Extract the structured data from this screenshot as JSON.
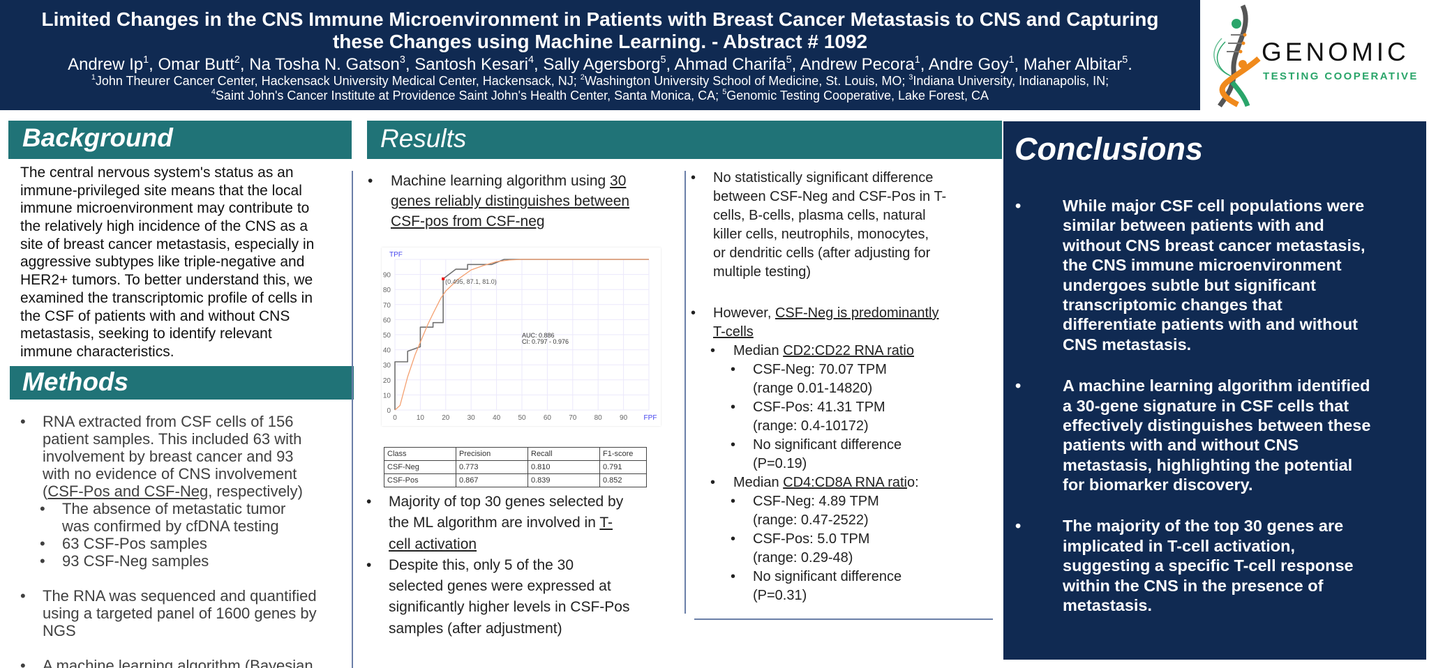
{
  "header": {
    "title_line1": "Limited Changes in the CNS Immune Microenvironment in Patients with Breast Cancer Metastasis to CNS and Capturing",
    "title_line2": "these Changes using Machine Learning. - Abstract # 1092",
    "authors": [
      {
        "name": "Andrew Ip",
        "aff": "1"
      },
      {
        "name": "Omar Butt",
        "aff": "2"
      },
      {
        "name": "Na Tosha N. Gatson",
        "aff": "3"
      },
      {
        "name": "Santosh Kesari",
        "aff": "4"
      },
      {
        "name": "Sally Agersborg",
        "aff": "5"
      },
      {
        "name": "Ahmad Charifa",
        "aff": "5"
      },
      {
        "name": "Andrew Pecora",
        "aff": "1"
      },
      {
        "name": "Andre Goy",
        "aff": "1"
      },
      {
        "name": "Maher Albitar",
        "aff": "5"
      }
    ],
    "affiliations_line1": [
      {
        "n": "1",
        "t": "John Theurer Cancer Center, Hackensack University Medical Center, Hackensack, NJ; "
      },
      {
        "n": "2",
        "t": "Washington University School of Medicine, St. Louis, MO; "
      },
      {
        "n": "3",
        "t": "Indiana University, Indianapolis, IN;"
      }
    ],
    "affiliations_line2": [
      {
        "n": "4",
        "t": "Saint John's Cancer Institute at Providence Saint John's Health Center, Santa Monica, CA; "
      },
      {
        "n": "5",
        "t": "Genomic Testing Cooperative, Lake Forest, CA"
      }
    ]
  },
  "logo": {
    "word": "GENOMIC",
    "sub": "TESTING COOPERATIVE",
    "colors": {
      "green": "#2aa56a",
      "orange": "#f08a1c",
      "gray": "#555555"
    }
  },
  "colors": {
    "navy": "#102a52",
    "teal": "#207377"
  },
  "background": {
    "heading": "Background",
    "lines": [
      {
        "segs": [
          "The central nervous system's status as an"
        ]
      },
      {
        "segs": [
          "immune-privileged site means that the local"
        ]
      },
      {
        "segs": [
          "immune microenvironment may contribute to"
        ]
      },
      {
        "segs": [
          "the relatively high incidence of the CNS as a"
        ]
      },
      {
        "segs": [
          "site of breast cancer metastasis, especially in"
        ]
      },
      {
        "segs": [
          "aggressive subtypes like triple-negative and"
        ]
      },
      {
        "segs": [
          "HER2+ tumors. To better understand this, we"
        ]
      },
      {
        "segs": [
          "examined the transcriptomic profile of cells in"
        ]
      },
      {
        "segs": [
          "the CSF of patients with and without CNS"
        ]
      },
      {
        "segs": [
          "metastasis, seeking to identify relevant"
        ]
      },
      {
        "segs": [
          "immune characteristics."
        ]
      }
    ]
  },
  "methods": {
    "heading": "Methods",
    "lines": [
      {
        "lvl": 0,
        "bullet": true,
        "segs": [
          "RNA extracted from CSF cells of 156"
        ]
      },
      {
        "lvl": 0,
        "segs": [
          "patient samples.  This included 63 with"
        ]
      },
      {
        "lvl": 0,
        "segs": [
          "involvement by breast cancer and 93"
        ]
      },
      {
        "lvl": 0,
        "segs": [
          "with no evidence of  CNS involvement"
        ]
      },
      {
        "lvl": 0,
        "segs": [
          "(",
          {
            "u": "CSF-Pos and CSF-Neg"
          },
          ", respectively)"
        ]
      },
      {
        "lvl": 1,
        "bullet": true,
        "segs": [
          "The absence of metastatic tumor"
        ]
      },
      {
        "lvl": 1,
        "segs": [
          "was confirmed by cfDNA testing"
        ]
      },
      {
        "lvl": 1,
        "bullet": true,
        "segs": [
          "63 CSF-Pos samples"
        ]
      },
      {
        "lvl": 1,
        "bullet": true,
        "segs": [
          "93 CSF-Neg samples"
        ]
      },
      {
        "gap": true
      },
      {
        "lvl": 0,
        "bullet": true,
        "segs": [
          "The RNA was sequenced and quantified"
        ]
      },
      {
        "lvl": 0,
        "segs": [
          "using a targeted panel of 1600 genes by"
        ]
      },
      {
        "lvl": 0,
        "segs": [
          "NGS"
        ]
      },
      {
        "gap": true
      },
      {
        "lvl": 0,
        "bullet": true,
        "segs": [
          "A machine learning algorithm (Bayesian"
        ]
      }
    ]
  },
  "results": {
    "heading": "Results",
    "col1_top": [
      {
        "lvl": 0,
        "bullet": true,
        "segs": [
          "Machine learning algorithm using ",
          {
            "u": "30"
          }
        ]
      },
      {
        "lvl": 0,
        "segs": [
          {
            "u": "genes reliably distinguishes between"
          }
        ]
      },
      {
        "lvl": 0,
        "segs": [
          {
            "u": "CSF-pos from CSF-neg"
          }
        ]
      }
    ],
    "col1_bottom": [
      {
        "lvl": 0,
        "bullet": true,
        "segs": [
          "Majority of top 30 genes selected by"
        ]
      },
      {
        "lvl": 0,
        "segs": [
          "the ML algorithm are involved in ",
          {
            "u": "T-"
          }
        ]
      },
      {
        "lvl": 0,
        "segs": [
          {
            "u": "cell activation"
          }
        ]
      },
      {
        "lvl": 0,
        "bullet": true,
        "segs": [
          "Despite this, only 5 of the 30"
        ]
      },
      {
        "lvl": 0,
        "segs": [
          "selected genes were expressed at"
        ]
      },
      {
        "lvl": 0,
        "segs": [
          "significantly higher levels in CSF-Pos"
        ]
      },
      {
        "lvl": 0,
        "segs": [
          "samples (after adjustment)"
        ]
      }
    ],
    "col2": [
      {
        "lvl": 0,
        "bullet": true,
        "segs": [
          "No statistically significant difference"
        ]
      },
      {
        "lvl": 0,
        "segs": [
          "between CSF-Neg and CSF-Pos in T-"
        ]
      },
      {
        "lvl": 0,
        "segs": [
          "cells, B-cells, plasma cells, natural"
        ]
      },
      {
        "lvl": 0,
        "segs": [
          "killer cells, neutrophils, monocytes,"
        ]
      },
      {
        "lvl": 0,
        "segs": [
          "or dendritic cells (after adjusting for"
        ]
      },
      {
        "lvl": 0,
        "segs": [
          "multiple testing)"
        ]
      },
      {
        "gap": true
      },
      {
        "lvl": 0,
        "bullet": true,
        "segs": [
          "However, ",
          {
            "u": "CSF-Neg is predominantly"
          }
        ]
      },
      {
        "lvl": 0,
        "segs": [
          {
            "u": "T-cells"
          }
        ]
      },
      {
        "lvl": 1,
        "bullet": true,
        "segs": [
          "Median ",
          {
            "u": "CD2:CD22 RNA ratio"
          }
        ]
      },
      {
        "lvl": 2,
        "bullet": true,
        "segs": [
          "CSF-Neg: 70.07 TPM"
        ]
      },
      {
        "lvl": 2,
        "segs": [
          "(range 0.01-14820)"
        ]
      },
      {
        "lvl": 2,
        "bullet": true,
        "segs": [
          "CSF-Pos: 41.31 TPM"
        ]
      },
      {
        "lvl": 2,
        "segs": [
          "(range: 0.4-10172)"
        ]
      },
      {
        "lvl": 2,
        "bullet": true,
        "segs": [
          "No significant difference"
        ]
      },
      {
        "lvl": 2,
        "segs": [
          "(P=0.19)"
        ]
      },
      {
        "lvl": 1,
        "bullet": true,
        "segs": [
          "Median ",
          {
            "u": "CD4:CD8A RNA rati"
          },
          "o:"
        ]
      },
      {
        "lvl": 2,
        "bullet": true,
        "segs": [
          "CSF-Neg: 4.89 TPM"
        ]
      },
      {
        "lvl": 2,
        "segs": [
          "(range: 0.47-2522)"
        ]
      },
      {
        "lvl": 2,
        "bullet": true,
        "segs": [
          "CSF-Pos: 5.0 TPM"
        ]
      },
      {
        "lvl": 2,
        "segs": [
          "(range: 0.29-48)"
        ]
      },
      {
        "lvl": 2,
        "bullet": true,
        "segs": [
          "No significant difference"
        ]
      },
      {
        "lvl": 2,
        "segs": [
          "(P=0.31)"
        ]
      }
    ],
    "metrics_table": {
      "headers": [
        "Class",
        "Precision",
        "Recall",
        "F1-score"
      ],
      "rows": [
        [
          "CSF-Neg",
          "0.773",
          "0.810",
          "0.791"
        ],
        [
          "CSF-Pos",
          "0.867",
          "0.839",
          "0.852"
        ]
      ]
    }
  },
  "chart_data": {
    "type": "line",
    "xlabel": "FPF",
    "ylabel": "TPF",
    "xlim": [
      0,
      100
    ],
    "ylim": [
      0,
      100
    ],
    "x_ticks": [
      0,
      10,
      20,
      30,
      40,
      50,
      60,
      70,
      80,
      90
    ],
    "y_ticks": [
      0,
      10,
      20,
      30,
      40,
      50,
      60,
      70,
      80,
      90
    ],
    "grid": true,
    "series": [
      {
        "style": "step",
        "color": "#707070",
        "points": [
          [
            0,
            0
          ],
          [
            0,
            32
          ],
          [
            5,
            32
          ],
          [
            5,
            39
          ],
          [
            10,
            42
          ],
          [
            10,
            55
          ],
          [
            15,
            55
          ],
          [
            15,
            58
          ],
          [
            19,
            58
          ],
          [
            19,
            87.1
          ],
          [
            24,
            93.5
          ],
          [
            28.6,
            93.5
          ],
          [
            28.6,
            96.6
          ],
          [
            38,
            96.6
          ],
          [
            43,
            100
          ],
          [
            100,
            100
          ]
        ]
      },
      {
        "style": "smooth",
        "color": "#f4a070",
        "points": [
          [
            0,
            0
          ],
          [
            2,
            3
          ],
          [
            5,
            22
          ],
          [
            8,
            37
          ],
          [
            10,
            45
          ],
          [
            13,
            57
          ],
          [
            15,
            64
          ],
          [
            18,
            74
          ],
          [
            20,
            79
          ],
          [
            25,
            87
          ],
          [
            30,
            93
          ],
          [
            35,
            96
          ],
          [
            40,
            98.5
          ],
          [
            45,
            99.6
          ],
          [
            50,
            100
          ],
          [
            100,
            100
          ]
        ]
      }
    ],
    "operating_point": {
      "x": 19,
      "y": 87.1,
      "label": "(0.495, 87.1, 81.0)",
      "color": "#ee1111"
    },
    "annotations": {
      "auc": "AUC: 0.886",
      "ci": "CI: 0.797 - 0.976"
    },
    "axis_label_color": "#4444ee"
  },
  "conclusions": {
    "heading": "Conclusions",
    "lines": [
      {
        "lvl": 0,
        "bullet": true,
        "segs": [
          "While major CSF cell populations were"
        ]
      },
      {
        "lvl": 0,
        "segs": [
          "similar between patients with and"
        ]
      },
      {
        "lvl": 0,
        "segs": [
          "without CNS breast cancer metastasis,"
        ]
      },
      {
        "lvl": 0,
        "segs": [
          "the CNS immune microenvironment"
        ]
      },
      {
        "lvl": 0,
        "segs": [
          "undergoes subtle but significant"
        ]
      },
      {
        "lvl": 0,
        "segs": [
          "transcriptomic changes that"
        ]
      },
      {
        "lvl": 0,
        "segs": [
          "differentiate patients with and without"
        ]
      },
      {
        "lvl": 0,
        "segs": [
          "CNS metastasis."
        ]
      },
      {
        "gap": true
      },
      {
        "lvl": 0,
        "bullet": true,
        "segs": [
          "A machine learning algorithm identified"
        ]
      },
      {
        "lvl": 0,
        "segs": [
          "a 30-gene signature in CSF cells that"
        ]
      },
      {
        "lvl": 0,
        "segs": [
          "effectively distinguishes between these"
        ]
      },
      {
        "lvl": 0,
        "segs": [
          "patients with and without CNS"
        ]
      },
      {
        "lvl": 0,
        "segs": [
          "metastasis, highlighting the potential"
        ]
      },
      {
        "lvl": 0,
        "segs": [
          "for biomarker discovery."
        ]
      },
      {
        "gap": true
      },
      {
        "lvl": 0,
        "bullet": true,
        "segs": [
          "The majority of the top 30 genes are"
        ]
      },
      {
        "lvl": 0,
        "segs": [
          "implicated in T-cell activation,"
        ]
      },
      {
        "lvl": 0,
        "segs": [
          "suggesting a specific T-cell response"
        ]
      },
      {
        "lvl": 0,
        "segs": [
          "within the CNS in the presence of"
        ]
      },
      {
        "lvl": 0,
        "segs": [
          "metastasis."
        ]
      }
    ]
  }
}
